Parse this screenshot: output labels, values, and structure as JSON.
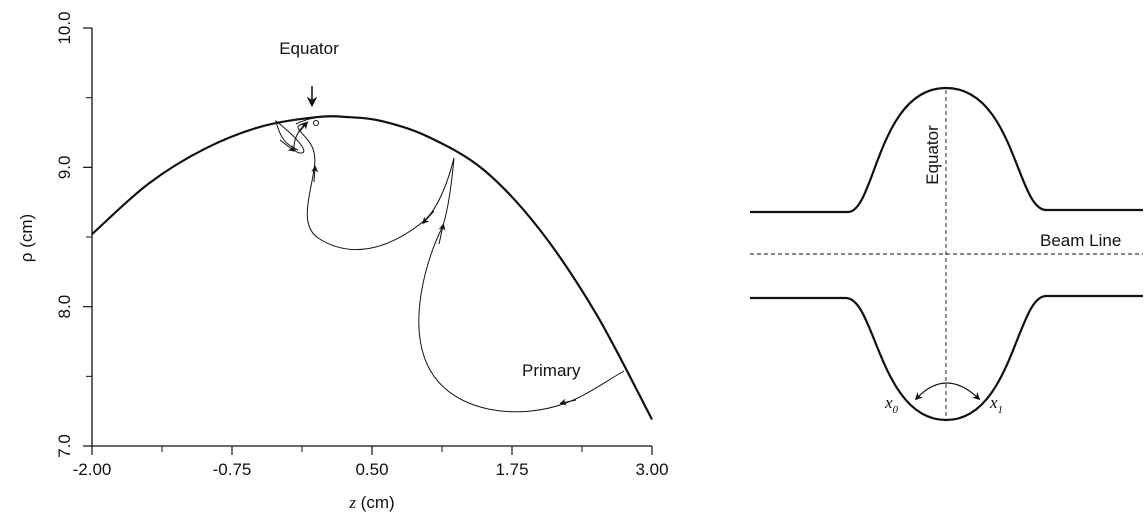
{
  "left_plot": {
    "y_axis_label": "ρ (cm)",
    "y_ticks": [
      "10.0",
      "9.0",
      "8.0",
      "7.0"
    ],
    "x_ticks": [
      "-2.00",
      "-0.75",
      "0.50",
      "1.75",
      "3.00"
    ],
    "x_label_var": "z",
    "x_label_unit": " (cm)",
    "annotation_equator": "Equator",
    "annotation_primary": "Primary"
  },
  "right_diagram": {
    "equator_label": "Equator",
    "beam_line_label": "Beam Line",
    "x0_main": "x",
    "x0_sub": "0",
    "x1_main": "x",
    "x1_sub": "1"
  },
  "chart_data": {
    "type": "line",
    "xlabel": "z (cm)",
    "ylabel": "ρ (cm)",
    "xlim": [
      -2.0,
      3.0
    ],
    "ylim": [
      7.0,
      10.0
    ],
    "grid": false,
    "series": [
      {
        "values_x": [
          -2.0,
          -1.5,
          -1.0,
          -0.5,
          0.0,
          0.3,
          0.6,
          1.0,
          1.5,
          2.0,
          2.5,
          3.0
        ],
        "values_y": [
          8.52,
          8.88,
          9.13,
          9.29,
          9.36,
          9.36,
          9.33,
          9.22,
          8.98,
          8.55,
          7.95,
          7.19
        ]
      }
    ]
  }
}
